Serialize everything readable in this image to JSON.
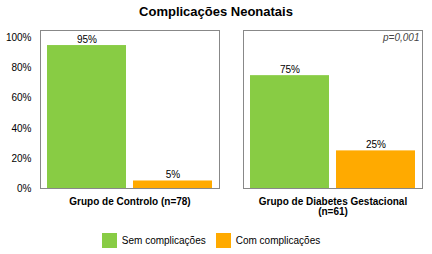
{
  "chart_data": {
    "type": "bar",
    "title": "Complicações Neonatais",
    "categories": [
      "Grupo de Controlo (n=78)",
      "Grupo de Diabetes Gestacional\n(n=61)"
    ],
    "series": [
      {
        "name": "Sem complicações",
        "color": "#88CC44",
        "values": [
          95,
          75
        ],
        "value_labels": [
          "95%",
          "75%"
        ]
      },
      {
        "name": "Com complicações",
        "color": "#FFAA00",
        "values": [
          5,
          25
        ],
        "value_labels": [
          "5%",
          "25%"
        ]
      }
    ],
    "ylim": [
      0,
      105
    ],
    "yticks": [
      {
        "value": 0,
        "label": "0%"
      },
      {
        "value": 20,
        "label": "20%"
      },
      {
        "value": 40,
        "label": "40%"
      },
      {
        "value": 60,
        "label": "60%"
      },
      {
        "value": 80,
        "label": "80%"
      },
      {
        "value": 100,
        "label": "100%"
      }
    ],
    "annotation": "p=0,001",
    "data_labels": true,
    "grid": false,
    "legend": "bottom"
  }
}
